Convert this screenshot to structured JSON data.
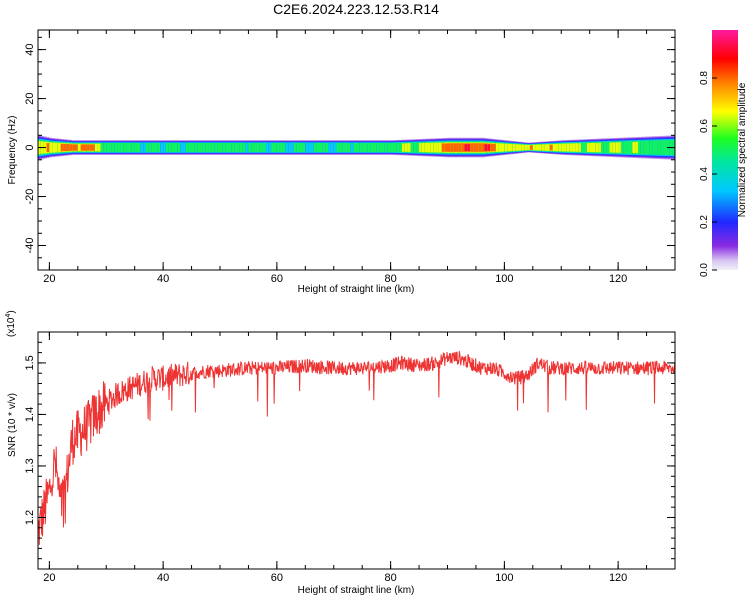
{
  "title": "C2E6.2024.223.12.53.R14",
  "chart_data": [
    {
      "type": "heatmap",
      "xlabel": "Height of straight line (km)",
      "ylabel": "Frequency (Hz)",
      "xlim": [
        18,
        130
      ],
      "ylim": [
        -50,
        48
      ],
      "x_ticks": [
        "20",
        "40",
        "60",
        "80",
        "100",
        "120"
      ],
      "y_ticks": [
        "-40",
        "-20",
        "0",
        "20",
        "40"
      ],
      "colorbar": {
        "label": "Normalized spectral amplitude",
        "range": [
          0,
          1
        ],
        "ticks": [
          "0.0",
          "0.2",
          "0.4",
          "0.6",
          "0.8"
        ]
      },
      "band": {
        "center_frequency": 0,
        "half_width_hz": [
          [
            18,
            5
          ],
          [
            20,
            4
          ],
          [
            24,
            3
          ],
          [
            30,
            3
          ],
          [
            40,
            3
          ],
          [
            60,
            3
          ],
          [
            80,
            3
          ],
          [
            90,
            4
          ],
          [
            96,
            4
          ],
          [
            100,
            3
          ],
          [
            104,
            2
          ],
          [
            110,
            3
          ],
          [
            120,
            4
          ],
          [
            130,
            5
          ]
        ],
        "peak_amplitude": [
          [
            18,
            0.75
          ],
          [
            22,
            0.9
          ],
          [
            25,
            0.92
          ],
          [
            28,
            0.85
          ],
          [
            30,
            0.6
          ],
          [
            40,
            0.55
          ],
          [
            50,
            0.6
          ],
          [
            60,
            0.55
          ],
          [
            70,
            0.55
          ],
          [
            80,
            0.65
          ],
          [
            86,
            0.75
          ],
          [
            92,
            0.95
          ],
          [
            97,
            0.95
          ],
          [
            100,
            0.7
          ],
          [
            106,
            0.85
          ],
          [
            112,
            0.75
          ],
          [
            120,
            0.7
          ],
          [
            128,
            0.6
          ],
          [
            130,
            0.55
          ]
        ]
      }
    },
    {
      "type": "line",
      "xlabel": "Height of straight line (km)",
      "ylabel": "SNR (10 * v/v)",
      "y_multiplier": "(x10",
      "y_multiplier_exp": "4",
      "xlim": [
        18,
        130
      ],
      "ylim": [
        1.1,
        1.56
      ],
      "x_ticks": [
        "20",
        "40",
        "60",
        "80",
        "100",
        "120"
      ],
      "y_ticks": [
        "1.2",
        "1.3",
        "1.4",
        "1.5"
      ],
      "line_color": "#ee3333",
      "series": [
        {
          "x": [
            18,
            19,
            20,
            21,
            22,
            23,
            24,
            25,
            26,
            27,
            28,
            30,
            32,
            34,
            36,
            38,
            40,
            42,
            45,
            48,
            50,
            55,
            60,
            65,
            70,
            75,
            80,
            82,
            85,
            88,
            90,
            92,
            94,
            96,
            98,
            100,
            102,
            104,
            106,
            108,
            110,
            115,
            120,
            125,
            130
          ],
          "y": [
            1.17,
            1.21,
            1.25,
            1.31,
            1.22,
            1.27,
            1.35,
            1.36,
            1.37,
            1.38,
            1.4,
            1.42,
            1.44,
            1.45,
            1.46,
            1.47,
            1.47,
            1.475,
            1.48,
            1.485,
            1.485,
            1.49,
            1.49,
            1.495,
            1.49,
            1.49,
            1.495,
            1.5,
            1.495,
            1.5,
            1.51,
            1.51,
            1.5,
            1.49,
            1.49,
            1.48,
            1.47,
            1.475,
            1.5,
            1.49,
            1.49,
            1.49,
            1.49,
            1.49,
            1.49
          ]
        }
      ]
    }
  ]
}
